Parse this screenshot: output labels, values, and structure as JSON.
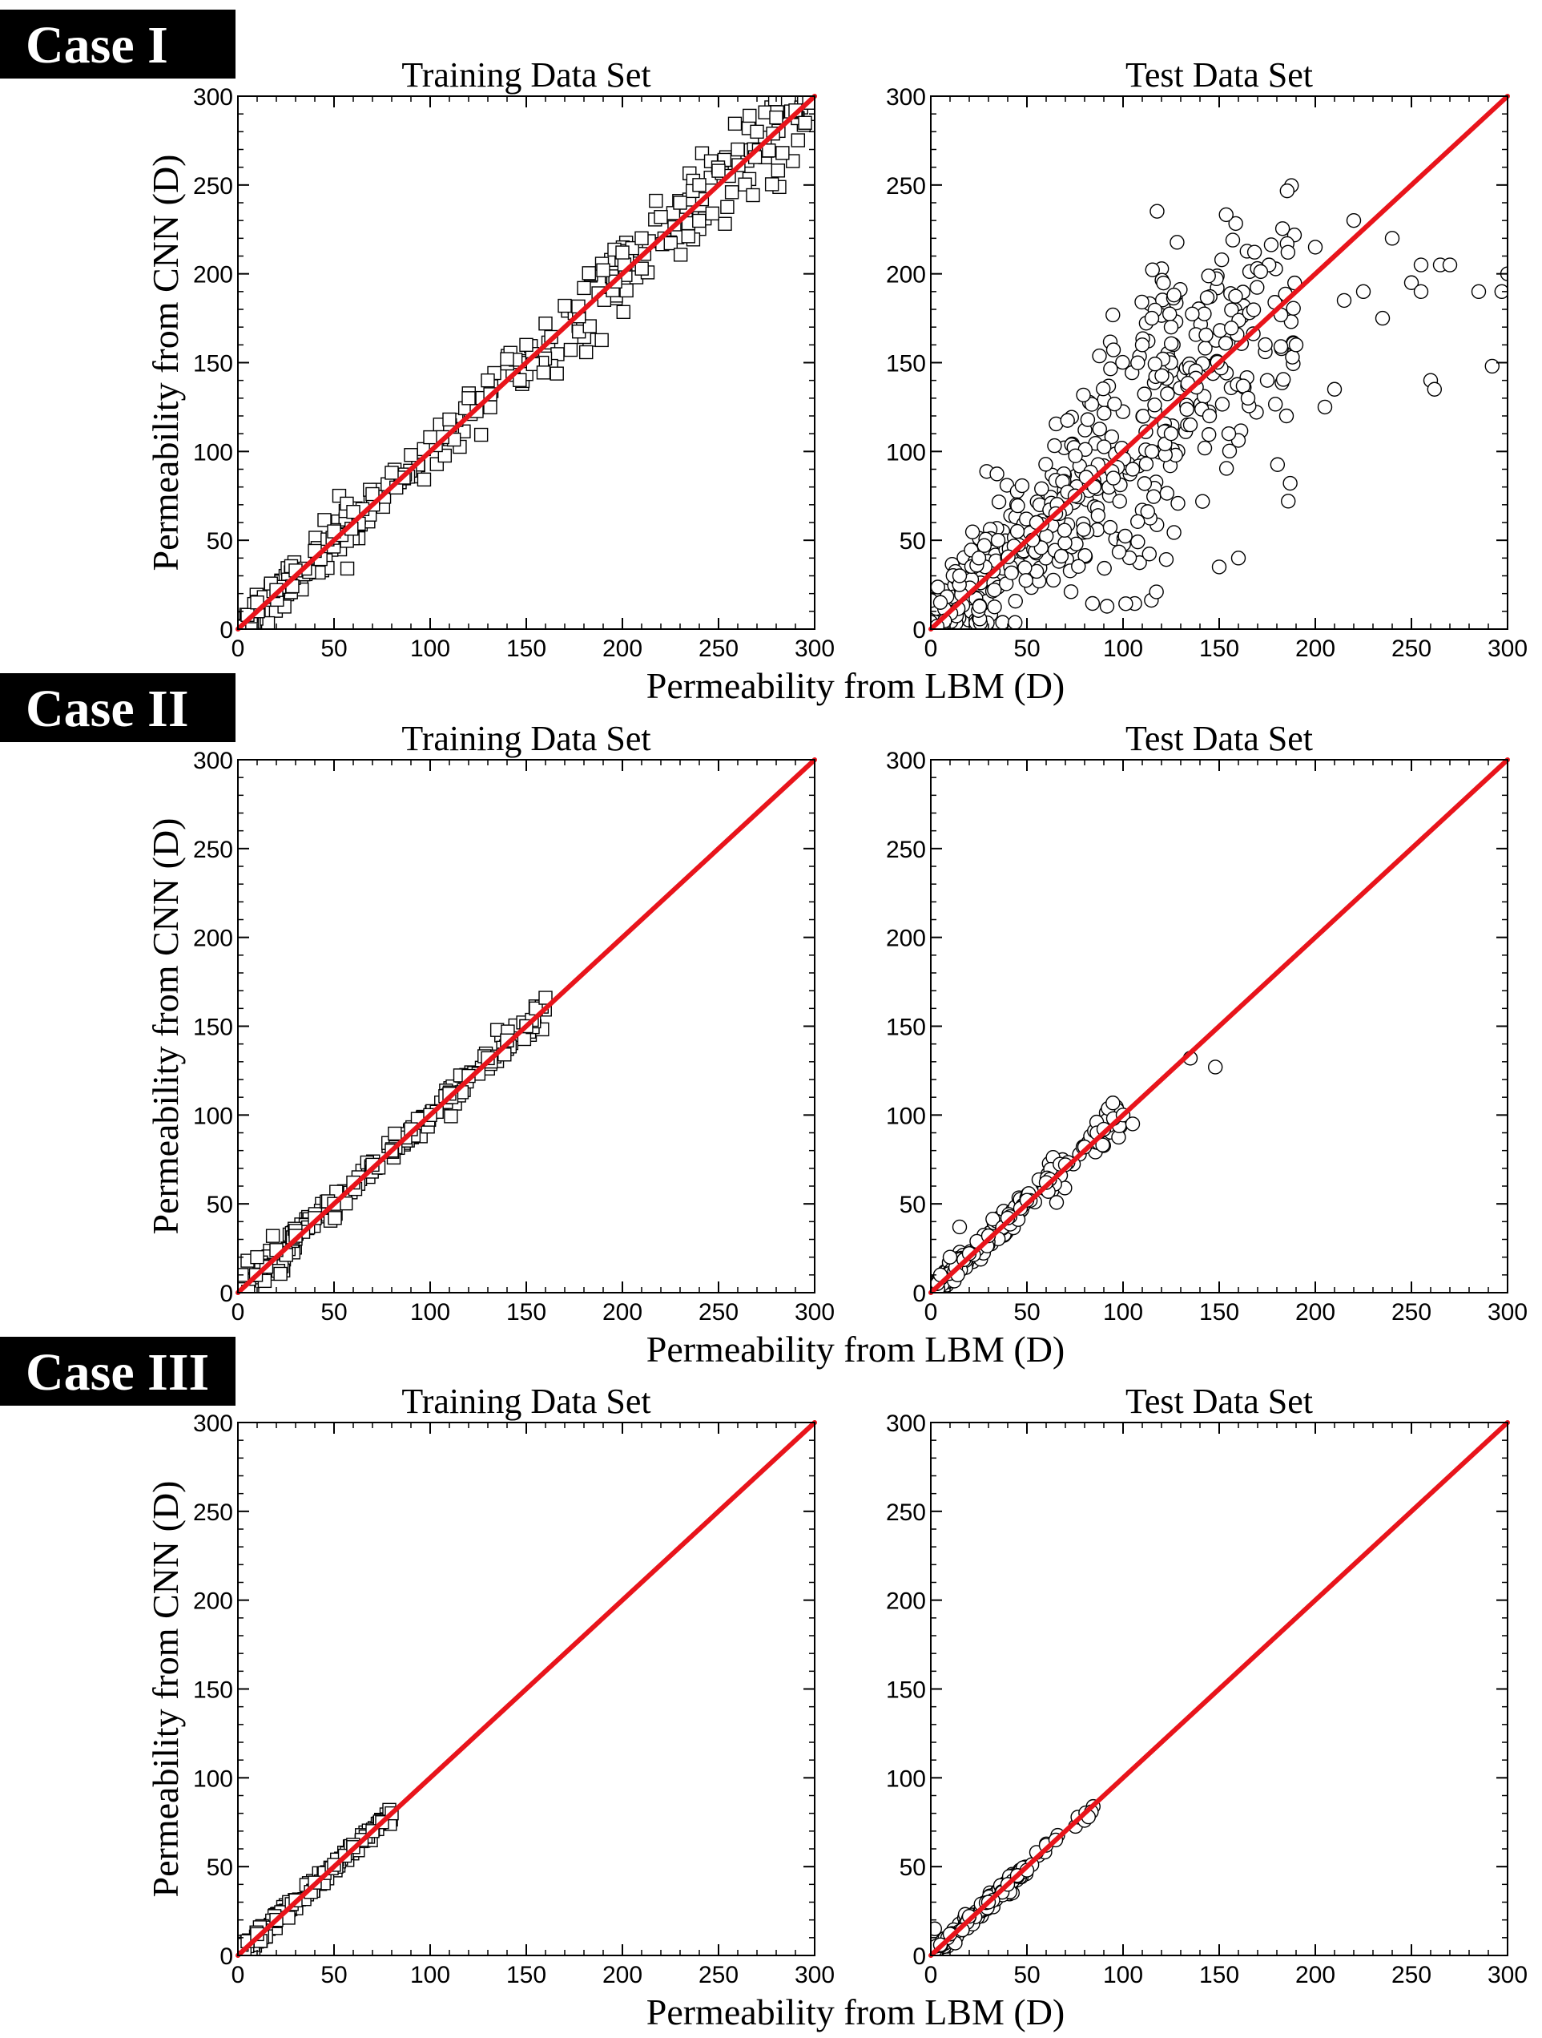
{
  "figure": {
    "cases": [
      {
        "label": "Case I",
        "panels": [
          {
            "title": "Training Data Set",
            "marker": "square",
            "dense": [
              {
                "x0": 0,
                "x1": 300,
                "n": 260,
                "ratio_sd": 0.05,
                "abs_sd": 4
              },
              {
                "x0": 0,
                "x1": 60,
                "n": 60,
                "ratio_sd": 0.12,
                "abs_sd": 5
              }
            ]
          },
          {
            "title": "Test Data Set",
            "marker": "circle",
            "dense": [
              {
                "x0": 0,
                "x1": 40,
                "n": 110,
                "ratio_sd": 0.5,
                "abs_sd": 14
              },
              {
                "x0": 40,
                "x1": 130,
                "n": 250,
                "ratio_sd": 0.35,
                "abs_sd": 12
              },
              {
                "x0": 130,
                "x1": 190,
                "n": 110,
                "ratio_sd": 0.22,
                "abs_sd": 10
              }
            ]
          }
        ]
      },
      {
        "label": "Case II",
        "panels": [
          {
            "title": "Training Data Set",
            "marker": "square",
            "dense": [
              {
                "x0": 0,
                "x1": 160,
                "n": 170,
                "ratio_sd": 0.02,
                "abs_sd": 3
              },
              {
                "x0": 0,
                "x1": 30,
                "n": 40,
                "ratio_sd": 0.1,
                "abs_sd": 5
              }
            ]
          },
          {
            "title": "Test Data Set",
            "marker": "circle",
            "dense": [
              {
                "x0": 0,
                "x1": 50,
                "n": 150,
                "ratio_sd": 0.07,
                "abs_sd": 3
              },
              {
                "x0": 50,
                "x1": 100,
                "n": 60,
                "ratio_sd": 0.06,
                "abs_sd": 3
              }
            ]
          }
        ]
      },
      {
        "label": "Case III",
        "panels": [
          {
            "title": "Training Data Set",
            "marker": "square",
            "dense": [
              {
                "x0": 0,
                "x1": 80,
                "n": 140,
                "ratio_sd": 0.02,
                "abs_sd": 2
              },
              {
                "x0": 0,
                "x1": 15,
                "n": 30,
                "ratio_sd": 0.1,
                "abs_sd": 3
              }
            ]
          },
          {
            "title": "Test Data Set",
            "marker": "circle",
            "dense": [
              {
                "x0": 0,
                "x1": 50,
                "n": 140,
                "ratio_sd": 0.04,
                "abs_sd": 2
              },
              {
                "x0": 50,
                "x1": 85,
                "n": 12,
                "ratio_sd": 0.03,
                "abs_sd": 2
              }
            ]
          }
        ]
      }
    ],
    "xlabel": "Permeability from LBM (D)",
    "ylabel": "Permeability from CNN (D)",
    "reference_line_color": "#e8141b",
    "case_label_bg": "#000000"
  },
  "chart_data": [
    {
      "type": "scatter",
      "title": "Training Data Set",
      "case": "Case I",
      "xlabel": "Permeability from LBM (D)",
      "ylabel": "Permeability from CNN (D)",
      "xlim": [
        0,
        300
      ],
      "ylim": [
        0,
        300
      ],
      "ticks": [
        0,
        50,
        100,
        150,
        200,
        250,
        300
      ],
      "reference_line": "y = x",
      "marker": "open square",
      "series": [
        {
          "x": [
            5,
            10,
            20,
            30,
            40,
            50,
            60,
            70,
            80,
            90,
            100,
            110,
            120,
            130,
            140,
            150,
            160,
            170,
            180,
            190,
            200,
            210,
            220,
            230,
            240,
            250,
            260,
            270,
            280,
            290,
            295
          ],
          "y": [
            8,
            15,
            22,
            33,
            44,
            55,
            66,
            76,
            88,
            98,
            108,
            118,
            130,
            140,
            152,
            160,
            172,
            182,
            192,
            202,
            212,
            220,
            232,
            240,
            250,
            258,
            270,
            280,
            288,
            292,
            285
          ]
        }
      ]
    },
    {
      "type": "scatter",
      "title": "Test Data Set",
      "case": "Case I",
      "xlabel": "Permeability from LBM (D)",
      "ylabel": "Permeability from CNN (D)",
      "xlim": [
        0,
        300
      ],
      "ylim": [
        0,
        300
      ],
      "ticks": [
        0,
        50,
        100,
        150,
        200,
        250,
        300
      ],
      "reference_line": "y = x",
      "marker": "open circle",
      "series": [
        {
          "x": [
            5,
            15,
            25,
            35,
            45,
            55,
            65,
            75,
            85,
            95,
            105,
            115,
            125,
            135,
            145,
            155,
            165,
            175,
            185,
            190,
            200,
            205,
            210,
            215,
            220,
            225,
            235,
            240,
            250,
            255,
            260,
            265,
            270,
            285,
            297,
            300,
            150,
            160,
            125,
            115,
            110,
            255,
            262,
            292
          ],
          "y": [
            15,
            30,
            40,
            50,
            55,
            60,
            65,
            75,
            80,
            85,
            90,
            100,
            110,
            115,
            120,
            110,
            130,
            140,
            120,
            160,
            215,
            125,
            135,
            185,
            230,
            190,
            175,
            220,
            195,
            190,
            140,
            205,
            205,
            190,
            190,
            200,
            35,
            40,
            170,
            175,
            160,
            205,
            135,
            148
          ]
        }
      ]
    },
    {
      "type": "scatter",
      "title": "Training Data Set",
      "case": "Case II",
      "xlabel": "Permeability from LBM (D)",
      "ylabel": "Permeability from CNN (D)",
      "xlim": [
        0,
        300
      ],
      "ylim": [
        0,
        300
      ],
      "ticks": [
        0,
        50,
        100,
        150,
        200,
        250,
        300
      ],
      "reference_line": "y = x",
      "marker": "open square",
      "series": [
        {
          "x": [
            2,
            5,
            10,
            20,
            30,
            40,
            50,
            60,
            70,
            80,
            90,
            100,
            110,
            120,
            130,
            140,
            150,
            155,
            160
          ],
          "y": [
            10,
            18,
            20,
            24,
            32,
            42,
            50,
            62,
            72,
            80,
            92,
            100,
            112,
            122,
            132,
            142,
            150,
            160,
            166
          ]
        }
      ]
    },
    {
      "type": "scatter",
      "title": "Test Data Set",
      "case": "Case II",
      "xlabel": "Permeability from LBM (D)",
      "ylabel": "Permeability from CNN (D)",
      "xlim": [
        0,
        300
      ],
      "ylim": [
        0,
        300
      ],
      "ticks": [
        0,
        50,
        100,
        150,
        200,
        250,
        300
      ],
      "reference_line": "y = x",
      "marker": "open circle",
      "series": [
        {
          "x": [
            5,
            10,
            15,
            20,
            30,
            40,
            50,
            60,
            70,
            80,
            90,
            95,
            100,
            105,
            135,
            148
          ],
          "y": [
            10,
            20,
            37,
            22,
            32,
            42,
            52,
            62,
            72,
            82,
            92,
            98,
            100,
            95,
            132,
            127
          ]
        }
      ]
    },
    {
      "type": "scatter",
      "title": "Training Data Set",
      "case": "Case III",
      "xlabel": "Permeability from LBM (D)",
      "ylabel": "Permeability from CNN (D)",
      "xlim": [
        0,
        300
      ],
      "ylim": [
        0,
        300
      ],
      "ticks": [
        0,
        50,
        100,
        150,
        200,
        250,
        300
      ],
      "reference_line": "y = x",
      "marker": "open square",
      "series": [
        {
          "x": [
            2,
            5,
            10,
            20,
            30,
            40,
            50,
            60,
            70,
            75,
            80
          ],
          "y": [
            6,
            8,
            12,
            20,
            31,
            41,
            51,
            61,
            70,
            75,
            80
          ]
        }
      ]
    },
    {
      "type": "scatter",
      "title": "Test Data Set",
      "case": "Case III",
      "xlabel": "Permeability from LBM (D)",
      "ylabel": "Permeability from CNN (D)",
      "xlim": [
        0,
        300
      ],
      "ylim": [
        0,
        300
      ],
      "ticks": [
        0,
        50,
        100,
        150,
        200,
        250,
        300
      ],
      "reference_line": "y = x",
      "marker": "open circle",
      "series": [
        {
          "x": [
            2,
            5,
            10,
            20,
            30,
            40,
            45,
            50,
            55,
            60,
            65,
            80,
            82
          ],
          "y": [
            15,
            6,
            12,
            22,
            30,
            40,
            45,
            48,
            58,
            62,
            65,
            76,
            78
          ]
        }
      ]
    }
  ]
}
